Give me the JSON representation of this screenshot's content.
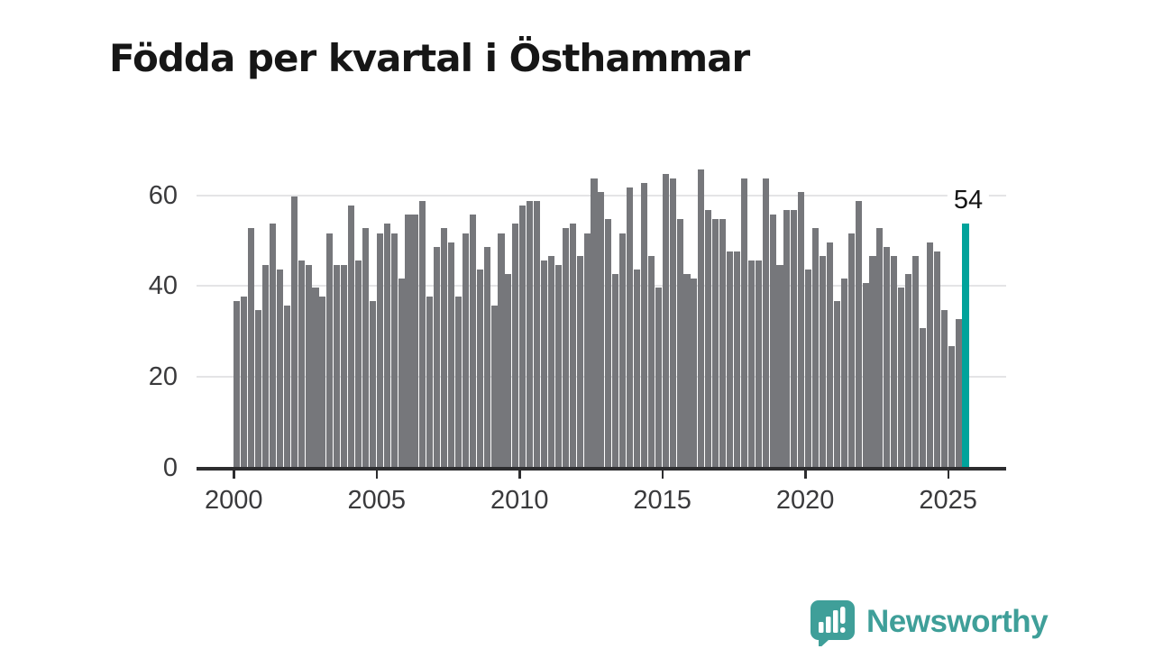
{
  "title": "Födda per kvartal i Östhammar",
  "chart_data": {
    "type": "bar",
    "title": "Födda per kvartal i Östhammar",
    "frequency": "quarterly",
    "x_start": "2000 Q1",
    "x_end": "2025 Q3",
    "values": [
      37,
      38,
      53,
      35,
      45,
      54,
      44,
      36,
      60,
      46,
      45,
      40,
      38,
      52,
      45,
      45,
      58,
      46,
      53,
      37,
      52,
      54,
      52,
      42,
      56,
      56,
      59,
      38,
      49,
      53,
      50,
      38,
      52,
      56,
      44,
      49,
      36,
      52,
      43,
      54,
      58,
      59,
      59,
      46,
      47,
      45,
      53,
      54,
      47,
      52,
      64,
      61,
      55,
      43,
      52,
      62,
      44,
      63,
      47,
      40,
      65,
      64,
      55,
      43,
      42,
      66,
      57,
      55,
      55,
      48,
      48,
      64,
      46,
      46,
      64,
      56,
      45,
      57,
      57,
      61,
      44,
      53,
      47,
      50,
      37,
      42,
      52,
      59,
      41,
      47,
      53,
      49,
      47,
      40,
      43,
      47,
      31,
      50,
      48,
      35,
      27,
      33,
      54
    ],
    "xticks": [
      2000,
      2005,
      2010,
      2015,
      2020,
      2025
    ],
    "yticks": [
      0,
      20,
      40,
      60
    ],
    "ylim": [
      0,
      66
    ],
    "grid": "horizontal",
    "bar_color": "#76777b",
    "highlight": {
      "index": 102,
      "value": 54,
      "label": "54",
      "color": "#00a39b"
    }
  },
  "branding": {
    "logo_text": "Newsworthy",
    "logo_color": "#3f9f99",
    "logo_icon": "speech-bubble-bar-chart-icon"
  }
}
